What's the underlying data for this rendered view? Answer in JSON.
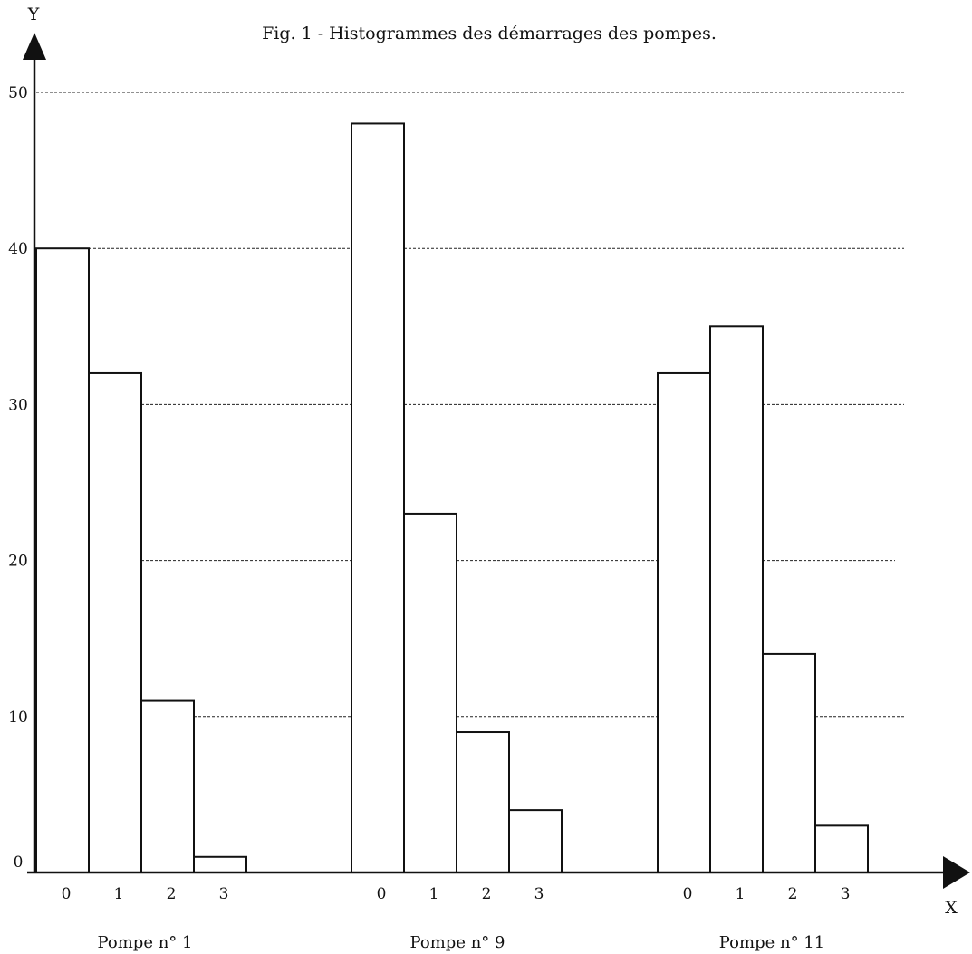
{
  "chart_data": {
    "type": "bar",
    "title": "Fig. 1 - Histogrammes des démarrages des pompes.",
    "ylabel": "Y",
    "xlabel": "X",
    "ylim": [
      0,
      50
    ],
    "yticks": [
      0,
      10,
      20,
      30,
      40,
      50
    ],
    "grid": true,
    "legend": "none",
    "groups": [
      {
        "name": "Pompe n° 1",
        "categories": [
          "0",
          "1",
          "2",
          "3"
        ],
        "values": [
          40,
          32,
          11,
          1
        ]
      },
      {
        "name": "Pompe n° 9",
        "categories": [
          "0",
          "1",
          "2",
          "3"
        ],
        "values": [
          48,
          23,
          9,
          4
        ]
      },
      {
        "name": "Pompe n° 11",
        "categories": [
          "0",
          "1",
          "2",
          "3"
        ],
        "values": [
          32,
          35,
          14,
          3
        ]
      }
    ],
    "colors": {
      "bar_fill": "#ffffff",
      "bar_stroke": "#111111",
      "grid": "#222222",
      "axis": "#111111"
    }
  }
}
